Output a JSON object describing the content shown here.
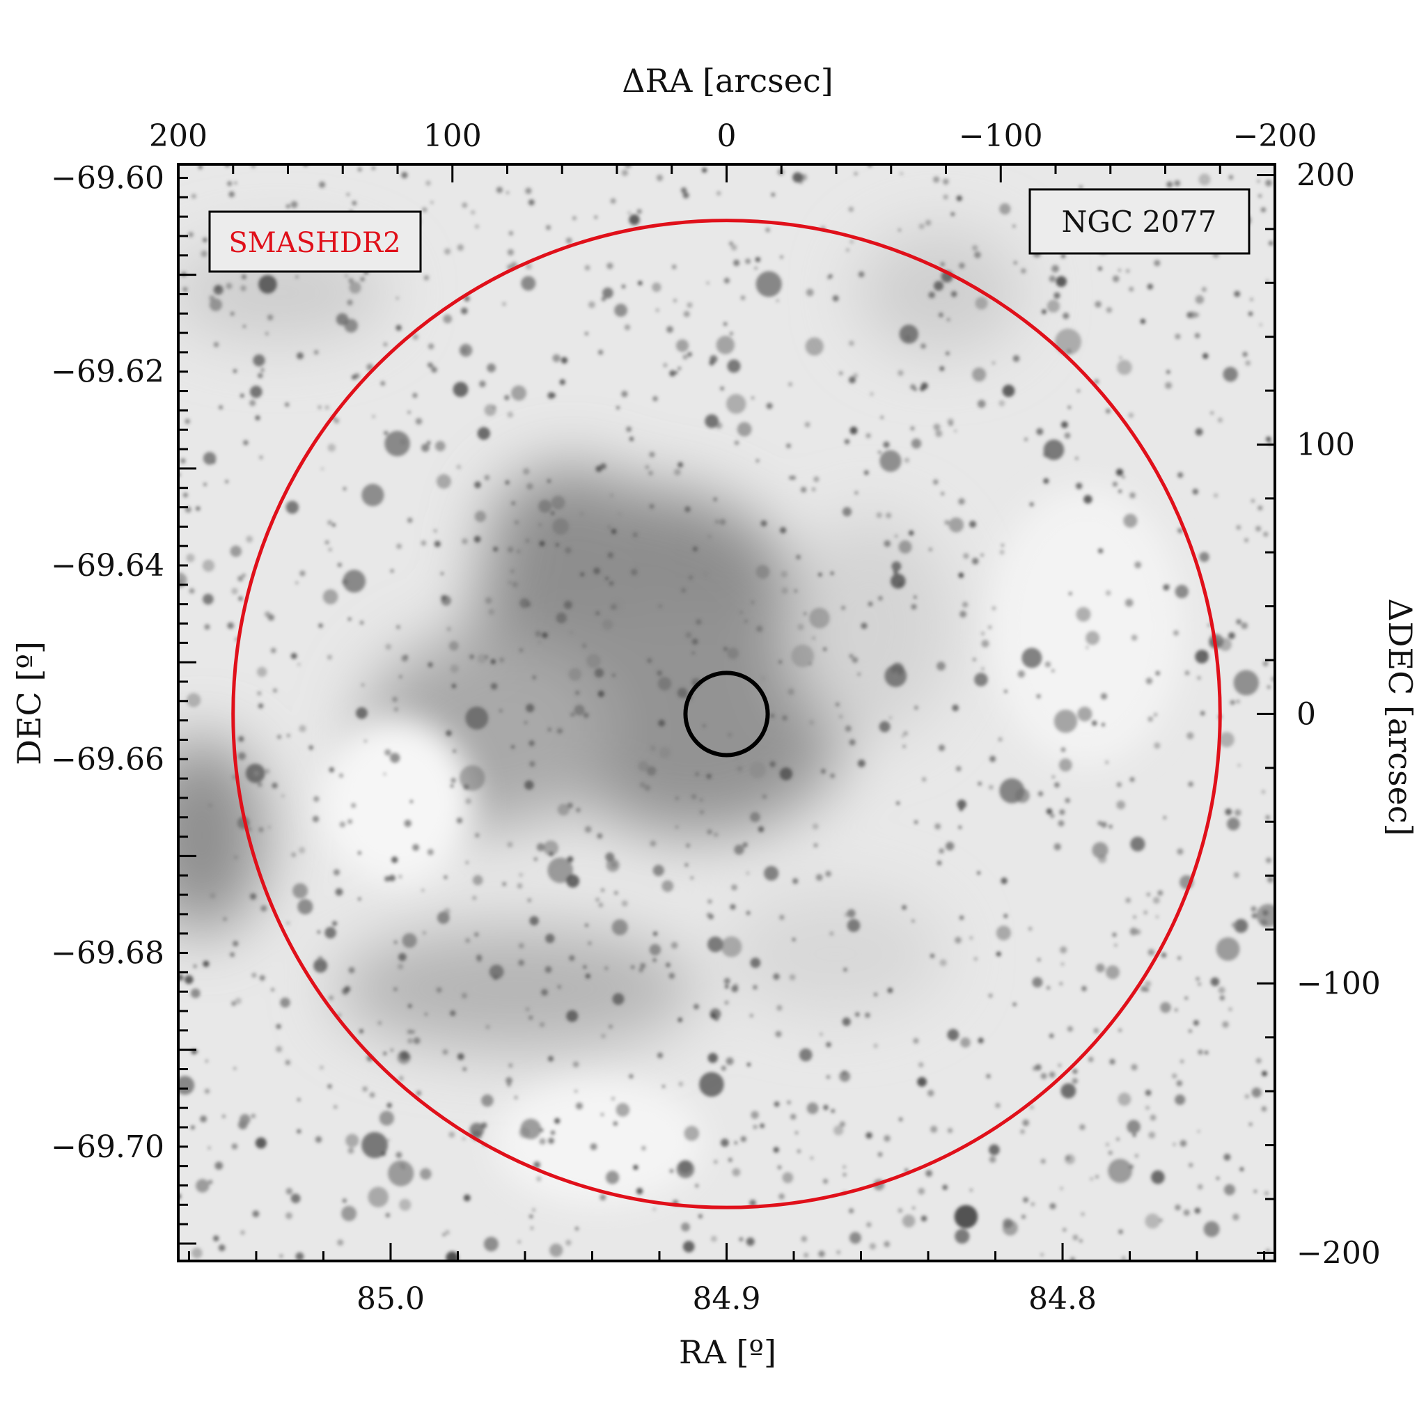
{
  "chart_data": {
    "type": "image",
    "survey_label": "SMASHDR2",
    "object_label": "NGC 2077",
    "colors": {
      "survey_label": "#e0101a",
      "outer_circle": "#e0101a",
      "inner_circle": "#000000",
      "sky_background": "#e8e8e8",
      "nebula": "#8e8e8e"
    },
    "axes": {
      "bottom": {
        "title": "RA [º]",
        "range": [
          85.0632,
          84.7368
        ],
        "ticks": [
          {
            "value": 85.0,
            "label": "85.0"
          },
          {
            "value": 84.9,
            "label": "84.9"
          },
          {
            "value": 84.8,
            "label": "84.8"
          }
        ]
      },
      "left": {
        "title": "DEC [º]",
        "range": [
          -69.7118,
          -69.5986
        ],
        "ticks": [
          {
            "value": -69.6,
            "label": "−69.60"
          },
          {
            "value": -69.62,
            "label": "−69.62"
          },
          {
            "value": -69.64,
            "label": "−69.64"
          },
          {
            "value": -69.66,
            "label": "−69.66"
          },
          {
            "value": -69.68,
            "label": "−69.68"
          },
          {
            "value": -69.7,
            "label": "−69.70"
          }
        ]
      },
      "top": {
        "title": "ΔRA [arcsec]",
        "range": [
          200,
          -200
        ],
        "ticks": [
          {
            "value": 200,
            "label": "200"
          },
          {
            "value": 100,
            "label": "100"
          },
          {
            "value": 0,
            "label": "0"
          },
          {
            "value": -100,
            "label": "−100"
          },
          {
            "value": -200,
            "label": "−200"
          }
        ]
      },
      "right": {
        "title": "ΔDEC [arcsec]",
        "range": [
          -203,
          204
        ],
        "ticks": [
          {
            "value": 200,
            "label": "200"
          },
          {
            "value": 100,
            "label": "100"
          },
          {
            "value": 0,
            "label": "0"
          },
          {
            "value": -100,
            "label": "−100"
          },
          {
            "value": -200,
            "label": "−200"
          }
        ]
      }
    },
    "circles": [
      {
        "name": "outer",
        "center_dra_arcsec": 0,
        "center_ddec_arcsec": 0,
        "radius_arcsec": 180
      },
      {
        "name": "inner",
        "center_dra_arcsec": 0,
        "center_ddec_arcsec": 0,
        "radius_arcsec": 15
      }
    ]
  }
}
